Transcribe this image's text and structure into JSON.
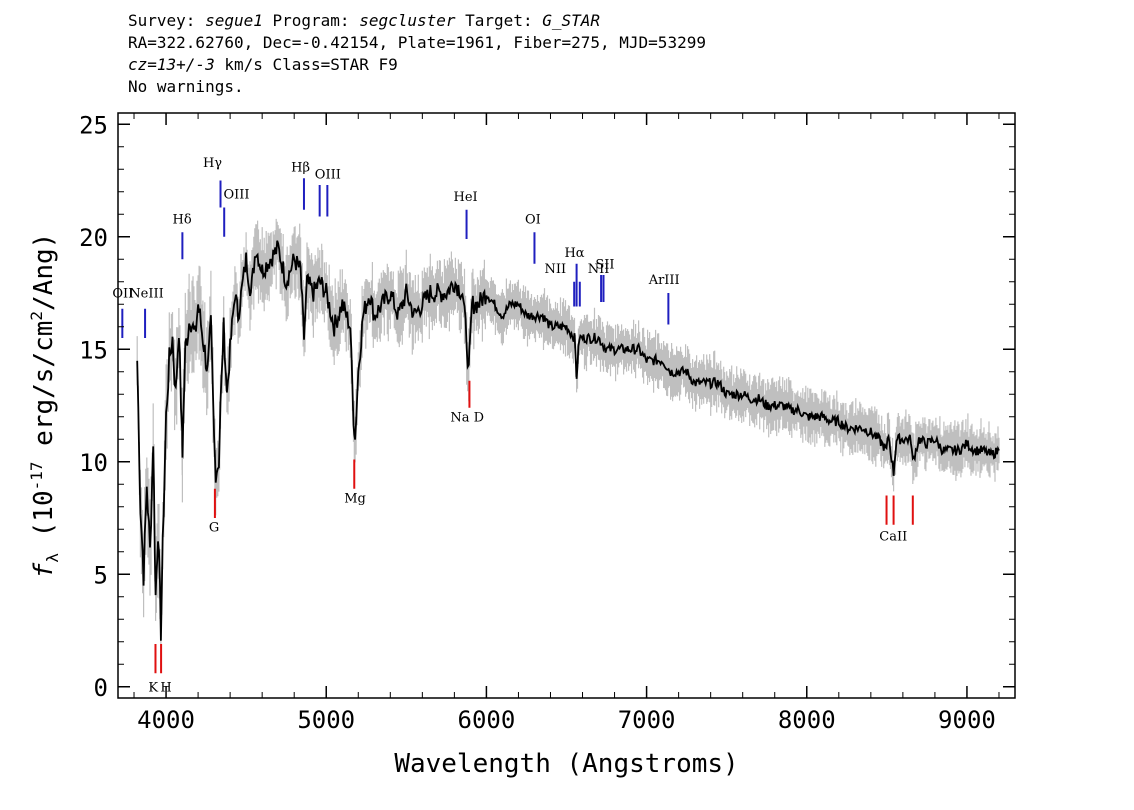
{
  "header": {
    "line1": [
      {
        "t": "Survey: ",
        "i": false
      },
      {
        "t": "segue1",
        "i": true
      },
      {
        "t": " Program: ",
        "i": false
      },
      {
        "t": "segcluster",
        "i": true
      },
      {
        "t": " Target: ",
        "i": false
      },
      {
        "t": "G_STAR",
        "i": true
      }
    ],
    "line2": "RA=322.62760, Dec=-0.42154, Plate=1961, Fiber=275, MJD=53299",
    "line3": [
      {
        "t": "cz=13+/-3",
        "i": true
      },
      {
        "t": " km/s Class=STAR F9",
        "i": false
      }
    ],
    "line4": "No warnings."
  },
  "chart_data": {
    "type": "line",
    "xlabel": "Wavelength (Angstroms)",
    "ylabel_main": "f",
    "ylabel_sub": "λ",
    "ylabel_rest": " (10",
    "ylabel_exp": "-17",
    "ylabel_units": " erg/s/cm",
    "ylabel_exp2": "2",
    "ylabel_end": "/Ang)",
    "xlim": [
      3700,
      9300
    ],
    "ylim": [
      -0.5,
      25.5
    ],
    "xticks": [
      4000,
      5000,
      6000,
      7000,
      8000,
      9000
    ],
    "yticks": [
      0,
      5,
      10,
      15,
      20,
      25
    ],
    "series": [
      {
        "color": "#000000",
        "x": [
          3820,
          3840,
          3860,
          3880,
          3900,
          3920,
          3935,
          3950,
          3968,
          3985,
          4000,
          4020,
          4040,
          4060,
          4080,
          4100,
          4102,
          4120,
          4150,
          4180,
          4200,
          4230,
          4260,
          4280,
          4300,
          4310,
          4330,
          4340,
          4360,
          4380,
          4400,
          4430,
          4450,
          4480,
          4500,
          4530,
          4560,
          4600,
          4650,
          4700,
          4750,
          4800,
          4840,
          4861,
          4880,
          4920,
          4960,
          5000,
          5050,
          5100,
          5150,
          5170,
          5180,
          5200,
          5230,
          5270,
          5300,
          5350,
          5400,
          5450,
          5500,
          5550,
          5600,
          5650,
          5700,
          5750,
          5800,
          5850,
          5870,
          5890,
          5896,
          5910,
          5950,
          6000,
          6050,
          6100,
          6150,
          6200,
          6250,
          6300,
          6350,
          6400,
          6450,
          6500,
          6550,
          6563,
          6580,
          6600,
          6650,
          6700,
          6750,
          6800,
          6850,
          6900,
          6950,
          7000,
          7050,
          7100,
          7150,
          7200,
          7250,
          7300,
          7350,
          7400,
          7450,
          7500,
          7550,
          7600,
          7650,
          7700,
          7750,
          7800,
          7850,
          7900,
          7950,
          8000,
          8050,
          8100,
          8150,
          8200,
          8250,
          8300,
          8350,
          8400,
          8450,
          8498,
          8510,
          8542,
          8560,
          8600,
          8650,
          8662,
          8700,
          8750,
          8800,
          8850,
          8900,
          8950,
          9000,
          9050,
          9100,
          9150,
          9200
        ],
        "y": [
          14.5,
          8.0,
          5.0,
          9.0,
          6.0,
          11.0,
          4.0,
          7.0,
          2.5,
          8.0,
          12.0,
          14.5,
          15.5,
          13.0,
          16.0,
          11.0,
          10.5,
          15.0,
          16.5,
          15.5,
          17.0,
          15.5,
          14.0,
          16.0,
          11.0,
          9.5,
          10.0,
          12.5,
          16.0,
          13.0,
          15.0,
          17.5,
          16.5,
          18.0,
          19.0,
          17.5,
          19.5,
          18.5,
          19.0,
          19.5,
          18.0,
          19.0,
          18.5,
          15.5,
          18.0,
          17.5,
          18.0,
          17.5,
          16.0,
          17.0,
          16.0,
          12.0,
          11.0,
          14.0,
          16.5,
          17.5,
          16.5,
          17.0,
          17.5,
          16.5,
          17.5,
          16.5,
          17.0,
          17.5,
          17.5,
          17.5,
          18.0,
          17.5,
          16.0,
          14.0,
          15.0,
          17.0,
          17.0,
          17.5,
          17.0,
          16.5,
          17.0,
          17.0,
          16.5,
          16.5,
          16.5,
          16.0,
          16.0,
          16.0,
          15.5,
          13.8,
          15.5,
          15.5,
          15.5,
          15.5,
          15.0,
          15.0,
          15.0,
          15.0,
          15.0,
          14.5,
          14.5,
          14.5,
          14.0,
          14.0,
          14.0,
          13.5,
          13.5,
          13.5,
          13.5,
          13.0,
          13.0,
          13.0,
          12.8,
          12.8,
          12.5,
          12.5,
          12.5,
          12.3,
          12.3,
          12.0,
          12.0,
          12.0,
          11.8,
          11.8,
          11.5,
          11.5,
          11.5,
          11.3,
          11.0,
          10.5,
          11.2,
          9.5,
          11.0,
          11.0,
          11.0,
          10.0,
          11.0,
          10.8,
          11.0,
          10.5,
          10.5,
          10.5,
          10.8,
          10.5,
          10.5,
          10.3,
          10.5
        ]
      }
    ],
    "error_band_color": "#bfbfbf",
    "emission_lines": [
      {
        "label": "OII",
        "x": 3727,
        "y1": 15.5,
        "y2": 16.8,
        "lx": 3730,
        "ly": 17.3
      },
      {
        "label": "NeIII",
        "x": 3869,
        "y1": 15.5,
        "y2": 16.8,
        "lx": 3878,
        "ly": 17.3
      },
      {
        "label": "Hδ",
        "x": 4102,
        "y1": 19.0,
        "y2": 20.2,
        "lx": 4100,
        "ly": 20.6
      },
      {
        "label": "Hγ",
        "x": 4340,
        "y1": 21.3,
        "y2": 22.5,
        "lx": 4290,
        "ly": 23.1
      },
      {
        "label": "OIII",
        "x": 4363,
        "y1": 20.0,
        "y2": 21.3,
        "lx": 4440,
        "ly": 21.7
      },
      {
        "label": "Hβ",
        "x": 4861,
        "y1": 21.2,
        "y2": 22.6,
        "lx": 4840,
        "ly": 22.9
      },
      {
        "label": "OIII",
        "x": 4959,
        "y1": 20.9,
        "y2": 22.3,
        "lx": 5010,
        "ly": 22.6
      },
      {
        "label": "OIII",
        "x": 5007,
        "y1": 20.9,
        "y2": 22.3,
        "lx": 5010,
        "ly": 22.6
      },
      {
        "label": "HeI",
        "x": 5876,
        "y1": 19.9,
        "y2": 21.2,
        "lx": 5870,
        "ly": 21.6
      },
      {
        "label": "OI",
        "x": 6300,
        "y1": 18.8,
        "y2": 20.2,
        "lx": 6290,
        "ly": 20.6
      },
      {
        "label": "NII",
        "x": 6548,
        "y1": 16.9,
        "y2": 18.0,
        "lx": 6430,
        "ly": 18.4
      },
      {
        "label": "Hα",
        "x": 6563,
        "y1": 16.9,
        "y2": 18.8,
        "lx": 6550,
        "ly": 19.1
      },
      {
        "label": "NII",
        "x": 6583,
        "y1": 16.9,
        "y2": 18.0,
        "lx": 6700,
        "ly": 18.4
      },
      {
        "label": "SII",
        "x": 6716,
        "y1": 17.1,
        "y2": 18.3,
        "lx": 6740,
        "ly": 18.6
      },
      {
        "label": "SII",
        "x": 6731,
        "y1": 17.1,
        "y2": 18.3,
        "lx": 6740,
        "ly": 18.6
      },
      {
        "label": "ArIII",
        "x": 7136,
        "y1": 16.1,
        "y2": 17.5,
        "lx": 7110,
        "ly": 17.9
      }
    ],
    "absorption_lines": [
      {
        "label": "K",
        "x": 3934,
        "y1": 0.6,
        "y2": 1.9,
        "lx": 3920,
        "ly": -0.2
      },
      {
        "label": "H",
        "x": 3969,
        "y1": 0.6,
        "y2": 1.9,
        "lx": 4000,
        "ly": -0.2
      },
      {
        "label": "G",
        "x": 4305,
        "y1": 7.5,
        "y2": 8.8,
        "lx": 4300,
        "ly": 6.9
      },
      {
        "label": "Mg",
        "x": 5175,
        "y1": 8.8,
        "y2": 10.1,
        "lx": 5180,
        "ly": 8.2
      },
      {
        "label": "Na D",
        "x": 5894,
        "y1": 12.4,
        "y2": 13.6,
        "lx": 5880,
        "ly": 11.8
      },
      {
        "label": "CaII",
        "x": 8498,
        "y1": 7.2,
        "y2": 8.5,
        "lx": 8540,
        "ly": 6.5
      },
      {
        "label": "CaII",
        "x": 8542,
        "y1": 7.2,
        "y2": 8.5,
        "lx": 8540,
        "ly": 6.5
      },
      {
        "label": "CaII",
        "x": 8662,
        "y1": 7.2,
        "y2": 8.5,
        "lx": 8540,
        "ly": 6.5
      }
    ],
    "emission_color": "#1f1fbf",
    "absorption_color": "#e01010"
  }
}
